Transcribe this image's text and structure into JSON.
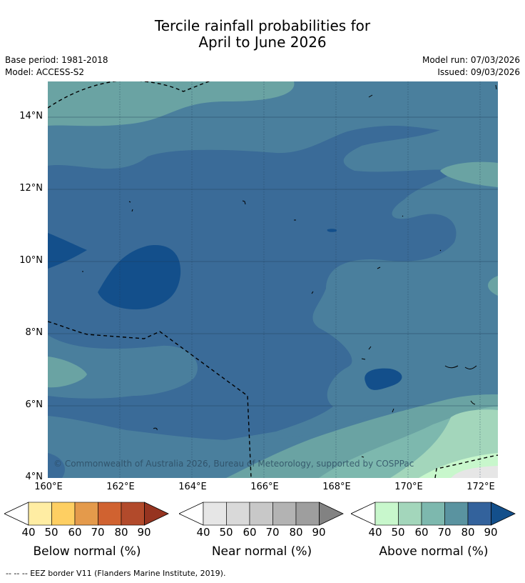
{
  "title": {
    "line1": "Tercile rainfall probabilities for",
    "line2": "April to June 2026"
  },
  "meta": {
    "base_period": "Base period: 1981-2018",
    "model": "Model: ACCESS-S2",
    "model_run": "Model run: 07/03/2026",
    "issued": "Issued: 09/03/2026"
  },
  "map": {
    "copyright": "© Commonwealth of Australia 2026, Bureau of Meteorology, supported by COSPPac",
    "lat_labels": [
      "14°N",
      "12°N",
      "10°N",
      "8°N",
      "6°N",
      "4°N"
    ],
    "lon_labels": [
      "160°E",
      "162°E",
      "164°E",
      "166°E",
      "168°E",
      "170°E",
      "172°E"
    ],
    "colors": {
      "above_50": "#a3d6bb",
      "above_60": "#7db8ae",
      "above_70": "#6aa3a3",
      "above_70b": "#5a93a0",
      "above_75": "#4a7f9d",
      "above_80": "#3a6b98",
      "above_80b": "#33629c",
      "above_90": "#134f8b",
      "above_40": "#c8f7cc",
      "near_40": "#e6e6e6"
    }
  },
  "colorbars": [
    {
      "name": "below",
      "label": "Below normal (%)",
      "ticks": [
        "40",
        "50",
        "60",
        "70",
        "80",
        "90"
      ],
      "colors": [
        "#ffeda3",
        "#fecf62",
        "#e49a4b",
        "#d06230",
        "#b24a2b",
        "#963420"
      ]
    },
    {
      "name": "near",
      "label": "Near normal (%)",
      "ticks": [
        "40",
        "50",
        "60",
        "70",
        "80",
        "90"
      ],
      "colors": [
        "#e6e6e6",
        "#d9d9d9",
        "#c8c8c8",
        "#b3b3b3",
        "#9e9e9e",
        "#828282"
      ]
    },
    {
      "name": "above",
      "label": "Above normal (%)",
      "ticks": [
        "40",
        "50",
        "60",
        "70",
        "80",
        "90"
      ],
      "colors": [
        "#c8f7cc",
        "#a3d6bb",
        "#7db8ae",
        "#5a93a0",
        "#33629c",
        "#134f8b"
      ]
    }
  ],
  "footer": "--  --  -- EEZ border V11 (Flanders Marine Institute, 2019)."
}
